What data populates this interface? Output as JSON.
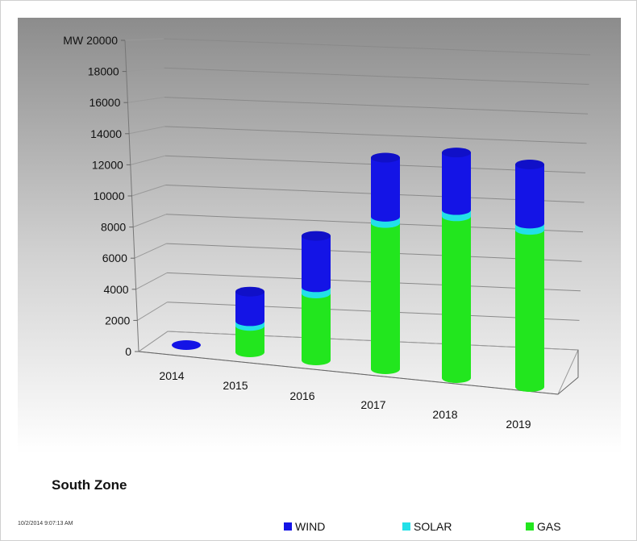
{
  "chart_data": {
    "type": "bar",
    "title": "South Zone",
    "ylabel": "MW",
    "ylim": [
      0,
      20000
    ],
    "yticks": [
      "0",
      "2000",
      "4000",
      "6000",
      "8000",
      "10000",
      "12000",
      "14000",
      "16000",
      "18000",
      "20000"
    ],
    "categories": [
      "2014",
      "2015",
      "2016",
      "2017",
      "2018",
      "2019"
    ],
    "series": [
      {
        "name": "GAS",
        "color": "#22e61e",
        "values": [
          0,
          1700,
          4300,
          9400,
          10400,
          10100
        ]
      },
      {
        "name": "SOLAR",
        "color": "#22e0e8",
        "values": [
          0,
          300,
          400,
          400,
          400,
          400
        ]
      },
      {
        "name": "WIND",
        "color": "#1414e6",
        "values": [
          0,
          1900,
          3300,
          3800,
          3700,
          3800
        ]
      }
    ],
    "grid": true,
    "legend_position": "bottom"
  },
  "zone_title": "South Zone",
  "timestamp": "10/2/2014 9:07:13 AM"
}
